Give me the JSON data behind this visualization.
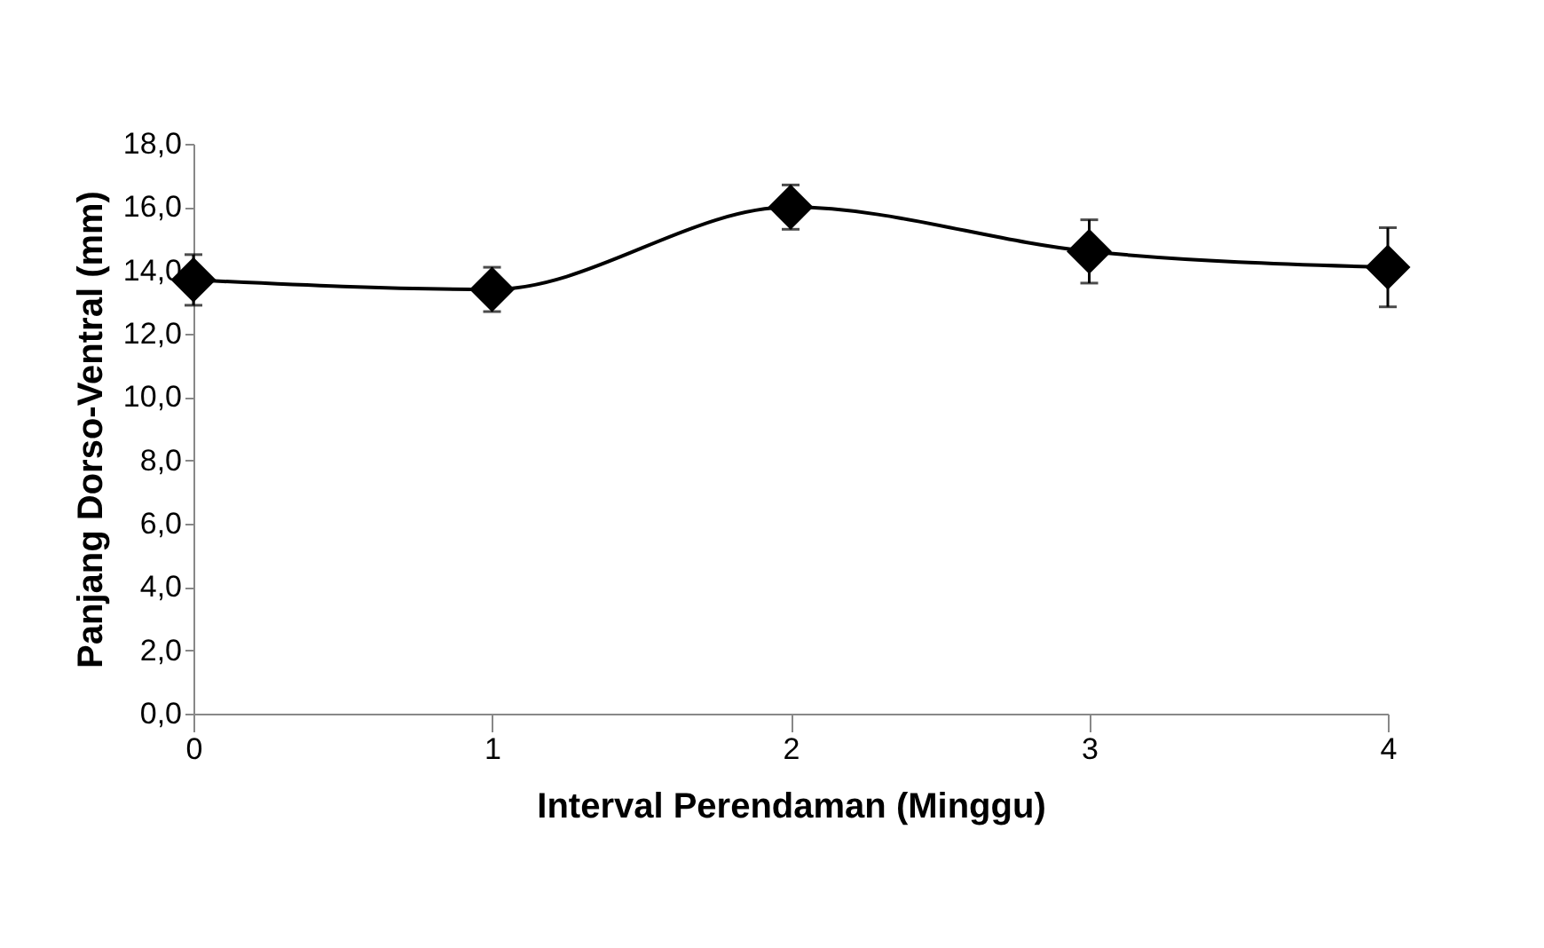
{
  "chart_data": {
    "type": "line",
    "xlabel": "Interval Perendaman (Minggu)",
    "ylabel": "Panjang Dorso-Ventral (mm)",
    "categories": [
      "0",
      "1",
      "2",
      "3",
      "4"
    ],
    "series": [
      {
        "color": "#000000",
        "values": [
          13.7,
          13.4,
          16.0,
          14.6,
          14.1
        ],
        "errors": [
          0.8,
          0.7,
          0.7,
          1.0,
          1.25
        ]
      }
    ],
    "ylim": [
      0,
      18
    ],
    "yticks": [
      {
        "value": 0,
        "label": "0,0"
      },
      {
        "value": 2,
        "label": "2,0"
      },
      {
        "value": 4,
        "label": "4,0"
      },
      {
        "value": 6,
        "label": "6,0"
      },
      {
        "value": 8,
        "label": "8,0"
      },
      {
        "value": 10,
        "label": "10,0"
      },
      {
        "value": 12,
        "label": "12,0"
      },
      {
        "value": 14,
        "label": "14,0"
      },
      {
        "value": 16,
        "label": "16,0"
      },
      {
        "value": 18,
        "label": "18,0"
      }
    ],
    "marker": "diamond",
    "line_style": "solid",
    "grid": false
  }
}
